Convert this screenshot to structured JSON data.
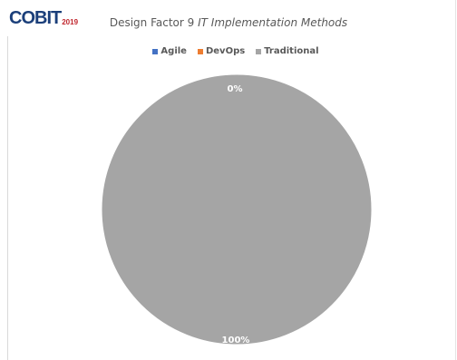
{
  "logo": {
    "text": "COBIT",
    "year": "2019"
  },
  "title": {
    "prefix": "Design Factor 9 ",
    "italic": "IT Implementation Methods"
  },
  "colors": {
    "Agile": "#4472c4",
    "DevOps": "#ed7d31",
    "Traditional": "#a5a5a5"
  },
  "chart_data": {
    "type": "pie",
    "title": "Design Factor 9 IT Implementation Methods",
    "legend_position": "top",
    "categories": [
      "Agile",
      "DevOps",
      "Traditional"
    ],
    "values": [
      0,
      0,
      100
    ],
    "data_labels": [
      "",
      "0%",
      "100%"
    ]
  }
}
